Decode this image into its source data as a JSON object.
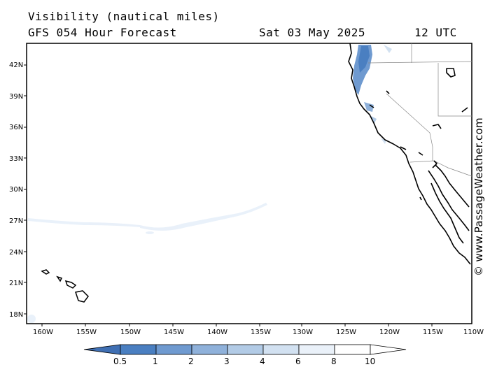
{
  "header": {
    "title": "Visibility (nautical miles)",
    "model_line": "GFS 054 Hour Forecast",
    "date": "Sat 03 May 2025",
    "time": "12 UTC"
  },
  "credit": "© www.PassageWeather.com",
  "map": {
    "lat_labels": [
      "42N",
      "39N",
      "36N",
      "33N",
      "30N",
      "27N",
      "24N",
      "21N",
      "18N"
    ],
    "lon_labels": [
      "160W",
      "155W",
      "150W",
      "145W",
      "140W",
      "135W",
      "130W",
      "125W",
      "120W",
      "115W",
      "110W"
    ]
  },
  "legend": {
    "labels": [
      "0.5",
      "1",
      "2",
      "3",
      "4",
      "6",
      "8",
      "10"
    ],
    "colors": [
      "#3f6fb3",
      "#4a7fc1",
      "#6f9ad0",
      "#8fb1da",
      "#b2cbe6",
      "#d2e1f1",
      "#eaf1f9",
      "#ffffff"
    ]
  }
}
